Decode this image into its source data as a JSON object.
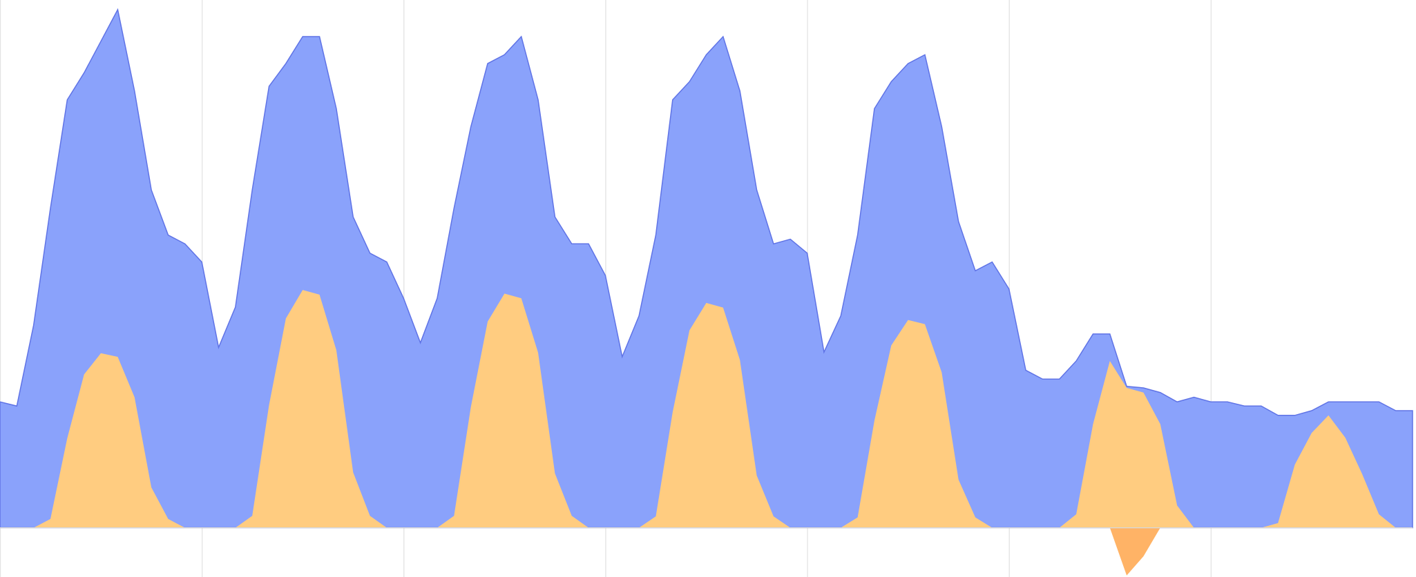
{
  "chart_data": {
    "type": "area",
    "x": [
      0,
      2,
      4,
      6,
      8,
      10,
      12,
      14,
      16,
      18,
      20,
      22,
      24,
      26,
      28,
      30,
      32,
      34,
      36,
      38,
      40,
      42,
      44,
      46,
      48,
      50,
      52,
      54,
      56,
      58,
      60,
      62,
      64,
      66,
      68,
      70,
      72,
      74,
      76,
      78,
      80,
      82,
      84,
      86,
      88,
      90,
      92,
      94,
      96,
      98,
      100,
      102,
      104,
      106,
      108,
      110,
      112,
      114,
      116,
      118,
      120,
      122,
      124,
      126,
      128,
      130,
      132,
      134,
      136,
      138,
      140,
      142,
      144,
      146,
      148,
      150,
      152,
      154,
      156,
      158,
      160,
      162,
      164,
      166,
      168
    ],
    "xlim": [
      0,
      168
    ],
    "xticks": [
      0,
      24,
      48,
      72,
      96,
      120,
      144
    ],
    "ylim": [
      -9.5,
      100
    ],
    "grid": true,
    "series": [
      {
        "color": "#8aa2fb",
        "values": [
          24.3,
          23.5,
          39.1,
          61.7,
          82.6,
          87.8,
          93.9,
          100,
          84.3,
          65.2,
          56.5,
          54.8,
          51.3,
          34.8,
          42.6,
          65.2,
          85.2,
          89.6,
          94.8,
          94.8,
          80.9,
          60.0,
          53.0,
          51.3,
          44.3,
          35.7,
          44.3,
          61.7,
          77.4,
          89.6,
          91.3,
          94.8,
          82.6,
          60.0,
          54.8,
          54.8,
          48.7,
          33.0,
          40.9,
          56.5,
          82.6,
          86.1,
          91.3,
          94.8,
          84.3,
          65.2,
          54.8,
          55.7,
          53.0,
          33.9,
          40.9,
          56.5,
          80.9,
          86.1,
          89.6,
          91.3,
          77.4,
          59.1,
          49.6,
          51.3,
          46.1,
          30.4,
          28.7,
          28.7,
          32.2,
          37.4,
          37.4,
          27.3,
          27.0,
          26.1,
          24.3,
          25.2,
          24.3,
          24.3,
          23.5,
          23.5,
          21.7,
          21.7,
          22.6,
          24.3,
          24.3,
          24.3,
          24.3,
          22.6,
          22.6
        ]
      },
      {
        "color": "#ffcc80",
        "values": [
          0,
          0,
          0,
          1.7,
          17.3,
          29.6,
          33.7,
          33.0,
          25.2,
          7.8,
          1.7,
          0,
          0,
          0,
          0,
          2.3,
          23.7,
          40.4,
          45.9,
          45.0,
          34.3,
          10.7,
          2.3,
          0,
          0,
          0,
          0,
          2.3,
          23.3,
          39.8,
          45.2,
          44.3,
          33.8,
          10.5,
          2.3,
          0,
          0,
          0,
          0,
          2.2,
          22.3,
          38.1,
          43.4,
          42.5,
          32.4,
          10.1,
          2.2,
          0,
          0,
          0,
          0,
          2.0,
          20.7,
          35.2,
          40.1,
          39.3,
          30.0,
          9.3,
          2.0,
          0,
          0,
          0,
          0,
          0,
          2.6,
          20,
          32.2,
          27,
          26.1,
          20,
          4.3,
          0,
          0,
          0,
          0,
          0,
          0.9,
          12.2,
          18.3,
          21.7,
          17.4,
          10.4,
          2.6,
          0,
          0
        ]
      },
      {
        "color": "#ffb366",
        "values": [
          null,
          null,
          null,
          null,
          null,
          null,
          null,
          null,
          null,
          null,
          null,
          null,
          null,
          null,
          null,
          null,
          null,
          null,
          null,
          null,
          null,
          null,
          null,
          null,
          null,
          null,
          null,
          null,
          null,
          null,
          null,
          null,
          null,
          null,
          null,
          null,
          null,
          null,
          null,
          null,
          null,
          null,
          null,
          null,
          null,
          null,
          null,
          null,
          null,
          null,
          null,
          null,
          null,
          null,
          null,
          null,
          null,
          null,
          null,
          null,
          null,
          null,
          null,
          null,
          null,
          null,
          0,
          -9.2,
          -5.5,
          0,
          null,
          null,
          null,
          null,
          null,
          null,
          null,
          null,
          null,
          null,
          null,
          null,
          null,
          null,
          null
        ]
      }
    ]
  }
}
